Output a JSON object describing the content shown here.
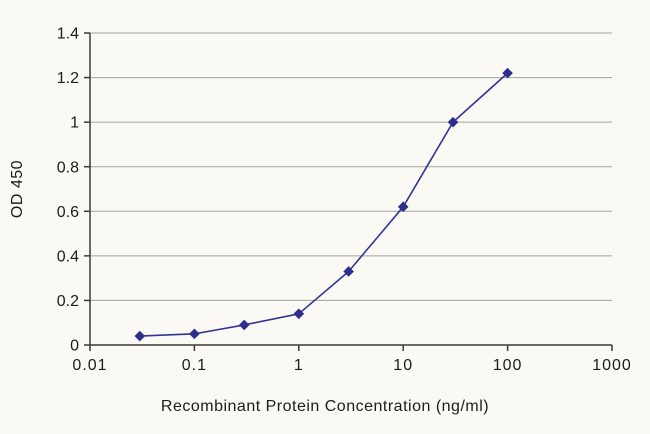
{
  "chart_data": {
    "type": "line",
    "title": "",
    "xlabel": "Recombinant Protein Concentration (ng/ml)",
    "ylabel": "OD 450",
    "x_scale": "log",
    "xlim": [
      0.01,
      1000
    ],
    "ylim": [
      0,
      1.4
    ],
    "x_ticks": [
      0.01,
      0.1,
      1,
      10,
      100,
      1000
    ],
    "x_tick_labels": [
      "0.01",
      "0.1",
      "1",
      "10",
      "100",
      "1000"
    ],
    "y_ticks": [
      0,
      0.2,
      0.4,
      0.6,
      0.8,
      1,
      1.2,
      1.4
    ],
    "y_tick_labels": [
      "0",
      "0.2",
      "0.4",
      "0.6",
      "0.8",
      "1",
      "1.2",
      "1.4"
    ],
    "grid": "horizontal",
    "legend": "none",
    "series": [
      {
        "name": "OD 450",
        "marker": "diamond",
        "x": [
          0.03,
          0.1,
          0.3,
          1,
          3,
          10,
          30,
          100
        ],
        "y": [
          0.04,
          0.05,
          0.09,
          0.14,
          0.33,
          0.62,
          1.0,
          1.22
        ]
      }
    ],
    "colors": {
      "line": "#333399",
      "marker": "#2e2e8f",
      "grid": "#a3a39b",
      "axis": "#3a3a3a",
      "text": "#1c1c1c",
      "background": "#fbf9f3"
    }
  }
}
